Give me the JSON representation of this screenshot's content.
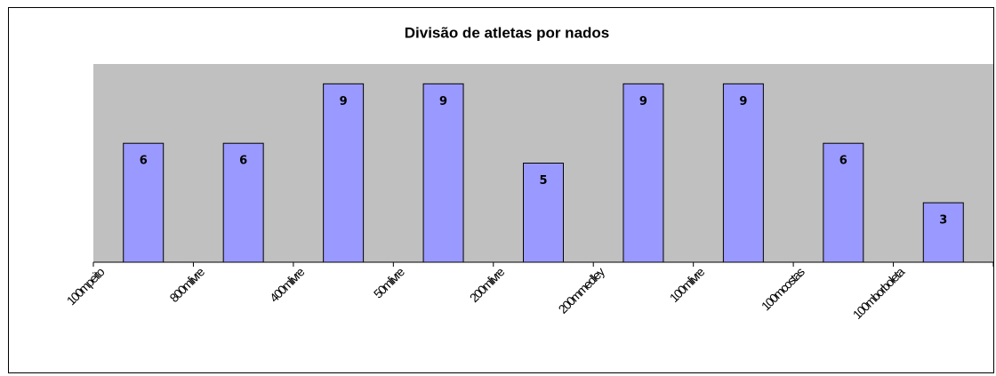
{
  "chart_data": {
    "type": "bar",
    "title": "Divisão de atletas por nados",
    "categories": [
      "100mpeito",
      "800mlivre",
      "400mlivre",
      "50mlivre",
      "200mlivre",
      "200mmedley",
      "100mlivre",
      "100mcostas",
      "100mborboleta"
    ],
    "values": [
      6,
      6,
      9,
      9,
      5,
      9,
      9,
      6,
      3
    ],
    "color": "#9999ff",
    "ylim": [
      0,
      10
    ],
    "grid": false
  }
}
